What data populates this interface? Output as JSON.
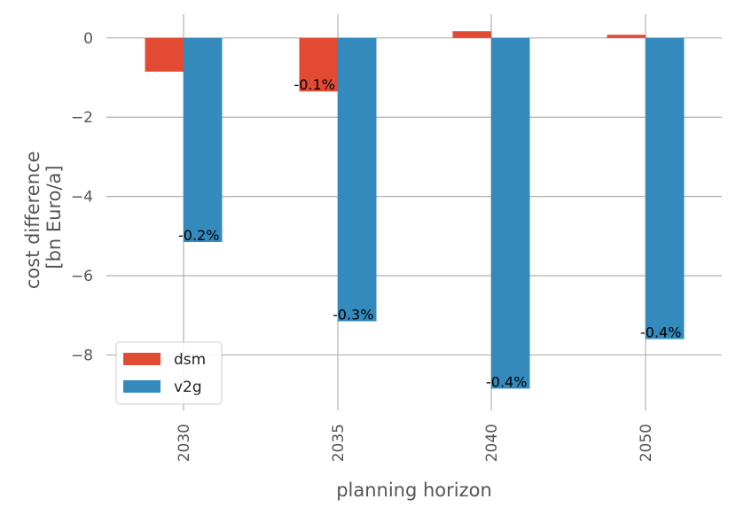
{
  "chart_data": {
    "type": "bar",
    "title": "",
    "xlabel": "planning horizon",
    "ylabel": [
      "cost difference",
      "[bn Euro/a]"
    ],
    "categories": [
      "2030",
      "2035",
      "2040",
      "2050"
    ],
    "series": [
      {
        "name": "dsm",
        "color": "#e24a33",
        "values": [
          -0.85,
          -1.35,
          0.17,
          0.08
        ]
      },
      {
        "name": "v2g",
        "color": "#348abd",
        "values": [
          -5.15,
          -7.15,
          -8.85,
          -7.6
        ]
      }
    ],
    "annotations": [
      {
        "series": 0,
        "category": 1,
        "text": "-0.1%"
      },
      {
        "series": 1,
        "category": 0,
        "text": "-0.2%"
      },
      {
        "series": 1,
        "category": 1,
        "text": "-0.3%"
      },
      {
        "series": 1,
        "category": 2,
        "text": "-0.4%"
      },
      {
        "series": 1,
        "category": 3,
        "text": "-0.4%"
      }
    ],
    "ylim": [
      -9.4,
      0.6
    ],
    "yticks": [
      0,
      -2,
      -4,
      -6,
      -8
    ],
    "ytick_labels": [
      "0",
      "−2",
      "−4",
      "−6",
      "−8"
    ],
    "grid": true,
    "legend_position": "lower-left",
    "xtick_rotation": "vertical"
  }
}
